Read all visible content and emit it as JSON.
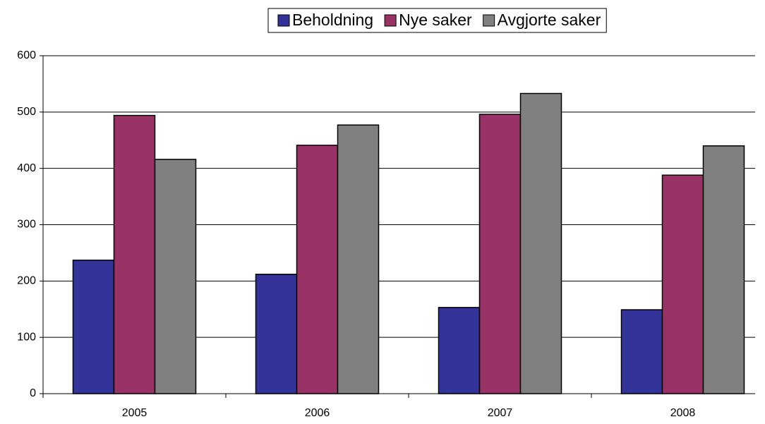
{
  "chart_data": {
    "type": "bar",
    "categories": [
      "2005",
      "2006",
      "2007",
      "2008"
    ],
    "series": [
      {
        "name": "Beholdning",
        "color": "#333399",
        "values": [
          237,
          212,
          153,
          149
        ]
      },
      {
        "name": "Nye saker",
        "color": "#993366",
        "values": [
          494,
          441,
          496,
          388
        ]
      },
      {
        "name": "Avgjorte saker",
        "color": "#808080",
        "values": [
          416,
          477,
          533,
          440
        ]
      }
    ],
    "ylim": [
      0,
      600
    ],
    "yticks": [
      0,
      100,
      200,
      300,
      400,
      500,
      600
    ],
    "grid": true,
    "legend": "top"
  }
}
